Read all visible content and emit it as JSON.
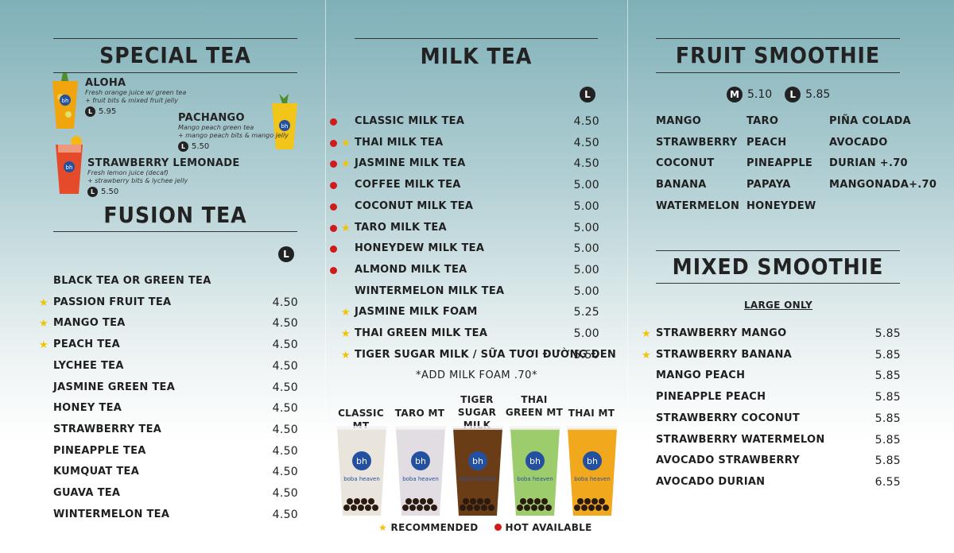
{
  "special_tea": {
    "heading": "SPECIAL TEA",
    "items": [
      {
        "name": "ALOHA",
        "desc1": "Fresh orange juice w/ green tea",
        "desc2": "+ fruit bits & mixed fruit jelly",
        "size": "L",
        "price": "5.95"
      },
      {
        "name": "PACHANGO",
        "desc1": "Mango peach green tea",
        "desc2": "+ mango peach bits & mango jelly",
        "size": "L",
        "price": "5.50"
      },
      {
        "name": "STRAWBERRY LEMONADE",
        "desc1": "Fresh lemon juice (decaf)",
        "desc2": "+ strawberry bits & lychee jelly",
        "size": "L",
        "price": "5.50"
      }
    ]
  },
  "fusion_tea": {
    "heading": "FUSION TEA",
    "size": "L",
    "items": [
      {
        "name": "BLACK TEA OR GREEN TEA",
        "price": "",
        "star": false
      },
      {
        "name": "PASSION FRUIT TEA",
        "price": "4.50",
        "star": true
      },
      {
        "name": "MANGO TEA",
        "price": "4.50",
        "star": true
      },
      {
        "name": "PEACH TEA",
        "price": "4.50",
        "star": true
      },
      {
        "name": "LYCHEE TEA",
        "price": "4.50",
        "star": false
      },
      {
        "name": "JASMINE GREEN TEA",
        "price": "4.50",
        "star": false
      },
      {
        "name": "HONEY TEA",
        "price": "4.50",
        "star": false
      },
      {
        "name": "STRAWBERRY TEA",
        "price": "4.50",
        "star": false
      },
      {
        "name": "PINEAPPLE TEA",
        "price": "4.50",
        "star": false
      },
      {
        "name": "KUMQUAT TEA",
        "price": "4.50",
        "star": false
      },
      {
        "name": "GUAVA TEA",
        "price": "4.50",
        "star": false
      },
      {
        "name": "WINTERMELON TEA",
        "price": "4.50",
        "star": false
      }
    ]
  },
  "milk_tea": {
    "heading": "MILK TEA",
    "size": "L",
    "items": [
      {
        "name": "CLASSIC MILK TEA",
        "price": "4.50",
        "hot": true,
        "star": false
      },
      {
        "name": "THAI MILK TEA",
        "price": "4.50",
        "hot": true,
        "star": true
      },
      {
        "name": "JASMINE MILK TEA",
        "price": "4.50",
        "hot": true,
        "star": true
      },
      {
        "name": "COFFEE MILK TEA",
        "price": "5.00",
        "hot": true,
        "star": false
      },
      {
        "name": "COCONUT MILK TEA",
        "price": "5.00",
        "hot": true,
        "star": false
      },
      {
        "name": "TARO MILK TEA",
        "price": "5.00",
        "hot": true,
        "star": true
      },
      {
        "name": "HONEYDEW MILK TEA",
        "price": "5.00",
        "hot": true,
        "star": false
      },
      {
        "name": "ALMOND MILK TEA",
        "price": "5.00",
        "hot": true,
        "star": false
      },
      {
        "name": "WINTERMELON MILK TEA",
        "price": "5.00",
        "hot": false,
        "star": false
      },
      {
        "name": "JASMINE MILK FOAM",
        "price": "5.25",
        "hot": false,
        "star": true
      },
      {
        "name": "THAI GREEN MILK TEA",
        "price": "5.00",
        "hot": false,
        "star": true
      },
      {
        "name": "TIGER SUGAR MILK / SỮA TƯƠI ĐƯỜNG ĐEN",
        "price": "5.50",
        "hot": false,
        "star": true
      }
    ],
    "addon": "*ADD MILK FOAM .70*",
    "cups": [
      {
        "label": "CLASSIC MT",
        "color": "#e9e4dc"
      },
      {
        "label": "TARO MT",
        "color": "#e2dde3"
      },
      {
        "label": "TIGER SUGAR MILK",
        "color": "#6b3d17"
      },
      {
        "label": "THAI GREEN MT",
        "color": "#9ccc6c"
      },
      {
        "label": "THAI MT",
        "color": "#f2a81d"
      }
    ],
    "cup_brand": "boba heaven"
  },
  "legend": {
    "recommended": "RECOMMENDED",
    "hot": "HOT AVAILABLE"
  },
  "fruit_smoothie": {
    "heading": "FRUIT SMOOTHIE",
    "sizes": [
      {
        "size": "M",
        "price": "5.10"
      },
      {
        "size": "L",
        "price": "5.85"
      }
    ],
    "col1": [
      "MANGO",
      "STRAWBERRY",
      "COCONUT",
      "BANANA",
      "WATERMELON"
    ],
    "col2": [
      "TARO",
      "PEACH",
      "PINEAPPLE",
      "PAPAYA",
      "HONEYDEW"
    ],
    "col3": [
      "PIÑA COLADA",
      "AVOCADO",
      "DURIAN +.70",
      "MANGONADA+.70"
    ]
  },
  "mixed_smoothie": {
    "heading": "MIXED SMOOTHIE",
    "note": "LARGE ONLY",
    "items": [
      {
        "name": "STRAWBERRY MANGO",
        "price": "5.85",
        "star": true
      },
      {
        "name": "STRAWBERRY BANANA",
        "price": "5.85",
        "star": true
      },
      {
        "name": "MANGO PEACH",
        "price": "5.85",
        "star": false
      },
      {
        "name": "PINEAPPLE PEACH",
        "price": "5.85",
        "star": false
      },
      {
        "name": "STRAWBERRY COCONUT",
        "price": "5.85",
        "star": false
      },
      {
        "name": "STRAWBERRY WATERMELON",
        "price": "5.85",
        "star": false
      },
      {
        "name": "AVOCADO STRAWBERRY",
        "price": "5.85",
        "star": false
      },
      {
        "name": "AVOCADO DURIAN",
        "price": "6.55",
        "star": false
      }
    ]
  },
  "colors": {
    "star": "#f2c300",
    "hot_dot": "#d11a1a",
    "badge": "#222222"
  }
}
